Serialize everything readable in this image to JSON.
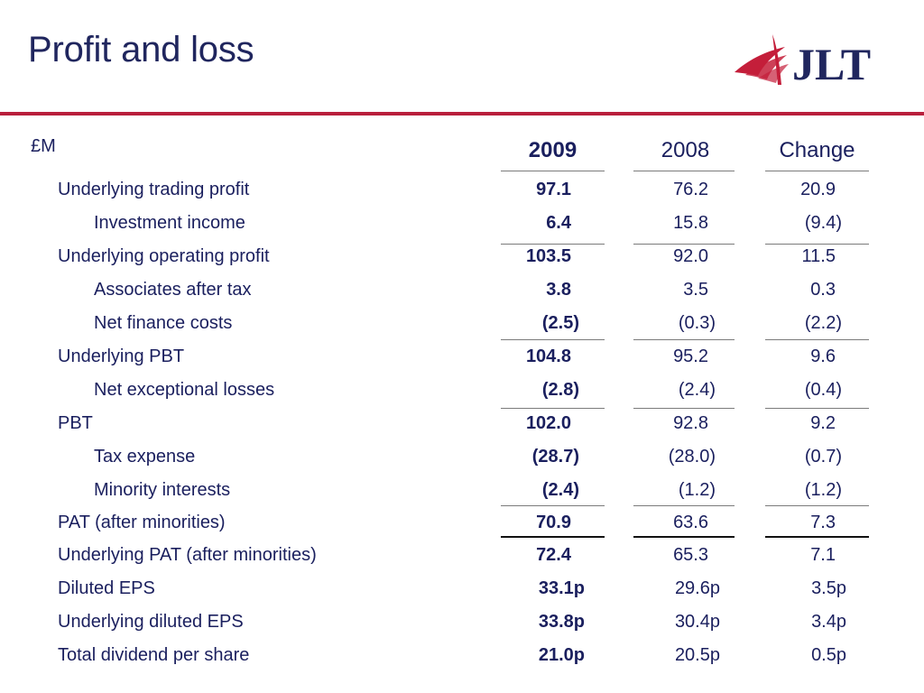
{
  "title": "Profit and loss",
  "logo": {
    "text": "JLT",
    "brand_color": "#20265e",
    "accent_color": "#c41e3a"
  },
  "unit": "£M",
  "columns": {
    "y2009": "2009",
    "y2008": "2008",
    "change": "Change"
  },
  "rows": [
    {
      "label": "Underlying trading profit",
      "indent": 0,
      "y2009": "97.1",
      "y2008": "76.2",
      "change": "20.9"
    },
    {
      "label": "Investment income",
      "indent": 1,
      "y2009": "6.4",
      "y2008": "15.8",
      "change": "(9.4)"
    },
    {
      "label": "Underlying operating profit",
      "indent": 0,
      "y2009": "103.5",
      "y2008": "92.0",
      "change": "11.5"
    },
    {
      "label": "Associates after tax",
      "indent": 1,
      "y2009": "3.8",
      "y2008": "3.5",
      "change": "0.3"
    },
    {
      "label": "Net finance costs",
      "indent": 1,
      "y2009": "(2.5)",
      "y2008": "(0.3)",
      "change": "(2.2)"
    },
    {
      "label": "Underlying PBT",
      "indent": 0,
      "y2009": "104.8",
      "y2008": "95.2",
      "change": "9.6"
    },
    {
      "label": "Net exceptional losses",
      "indent": 1,
      "y2009": "(2.8)",
      "y2008": "(2.4)",
      "change": "(0.4)"
    },
    {
      "label": "PBT",
      "indent": 0,
      "y2009": "102.0",
      "y2008": "92.8",
      "change": "9.2"
    },
    {
      "label": "Tax expense",
      "indent": 1,
      "y2009": "(28.7)",
      "y2008": "(28.0)",
      "change": "(0.7)"
    },
    {
      "label": "Minority interests",
      "indent": 1,
      "y2009": "(2.4)",
      "y2008": "(1.2)",
      "change": "(1.2)"
    },
    {
      "label": "PAT (after minorities)",
      "indent": 0,
      "y2009": "70.9",
      "y2008": "63.6",
      "change": "7.3"
    },
    {
      "label": "Underlying PAT (after minorities)",
      "indent": 0,
      "y2009": "72.4",
      "y2008": "65.3",
      "change": "7.1"
    },
    {
      "label": "Diluted EPS",
      "indent": 0,
      "y2009": "33.1p",
      "y2008": "29.6p",
      "change": "3.5p"
    },
    {
      "label": "Underlying diluted EPS",
      "indent": 0,
      "y2009": "33.8p",
      "y2008": "30.4p",
      "change": "3.4p"
    },
    {
      "label": "Total dividend per share",
      "indent": 0,
      "y2009": "21.0p",
      "y2008": "20.5p",
      "change": "0.5p"
    }
  ],
  "colors": {
    "title": "#20265e",
    "rule": "#b91f3c",
    "text": "#1a1f5e"
  }
}
